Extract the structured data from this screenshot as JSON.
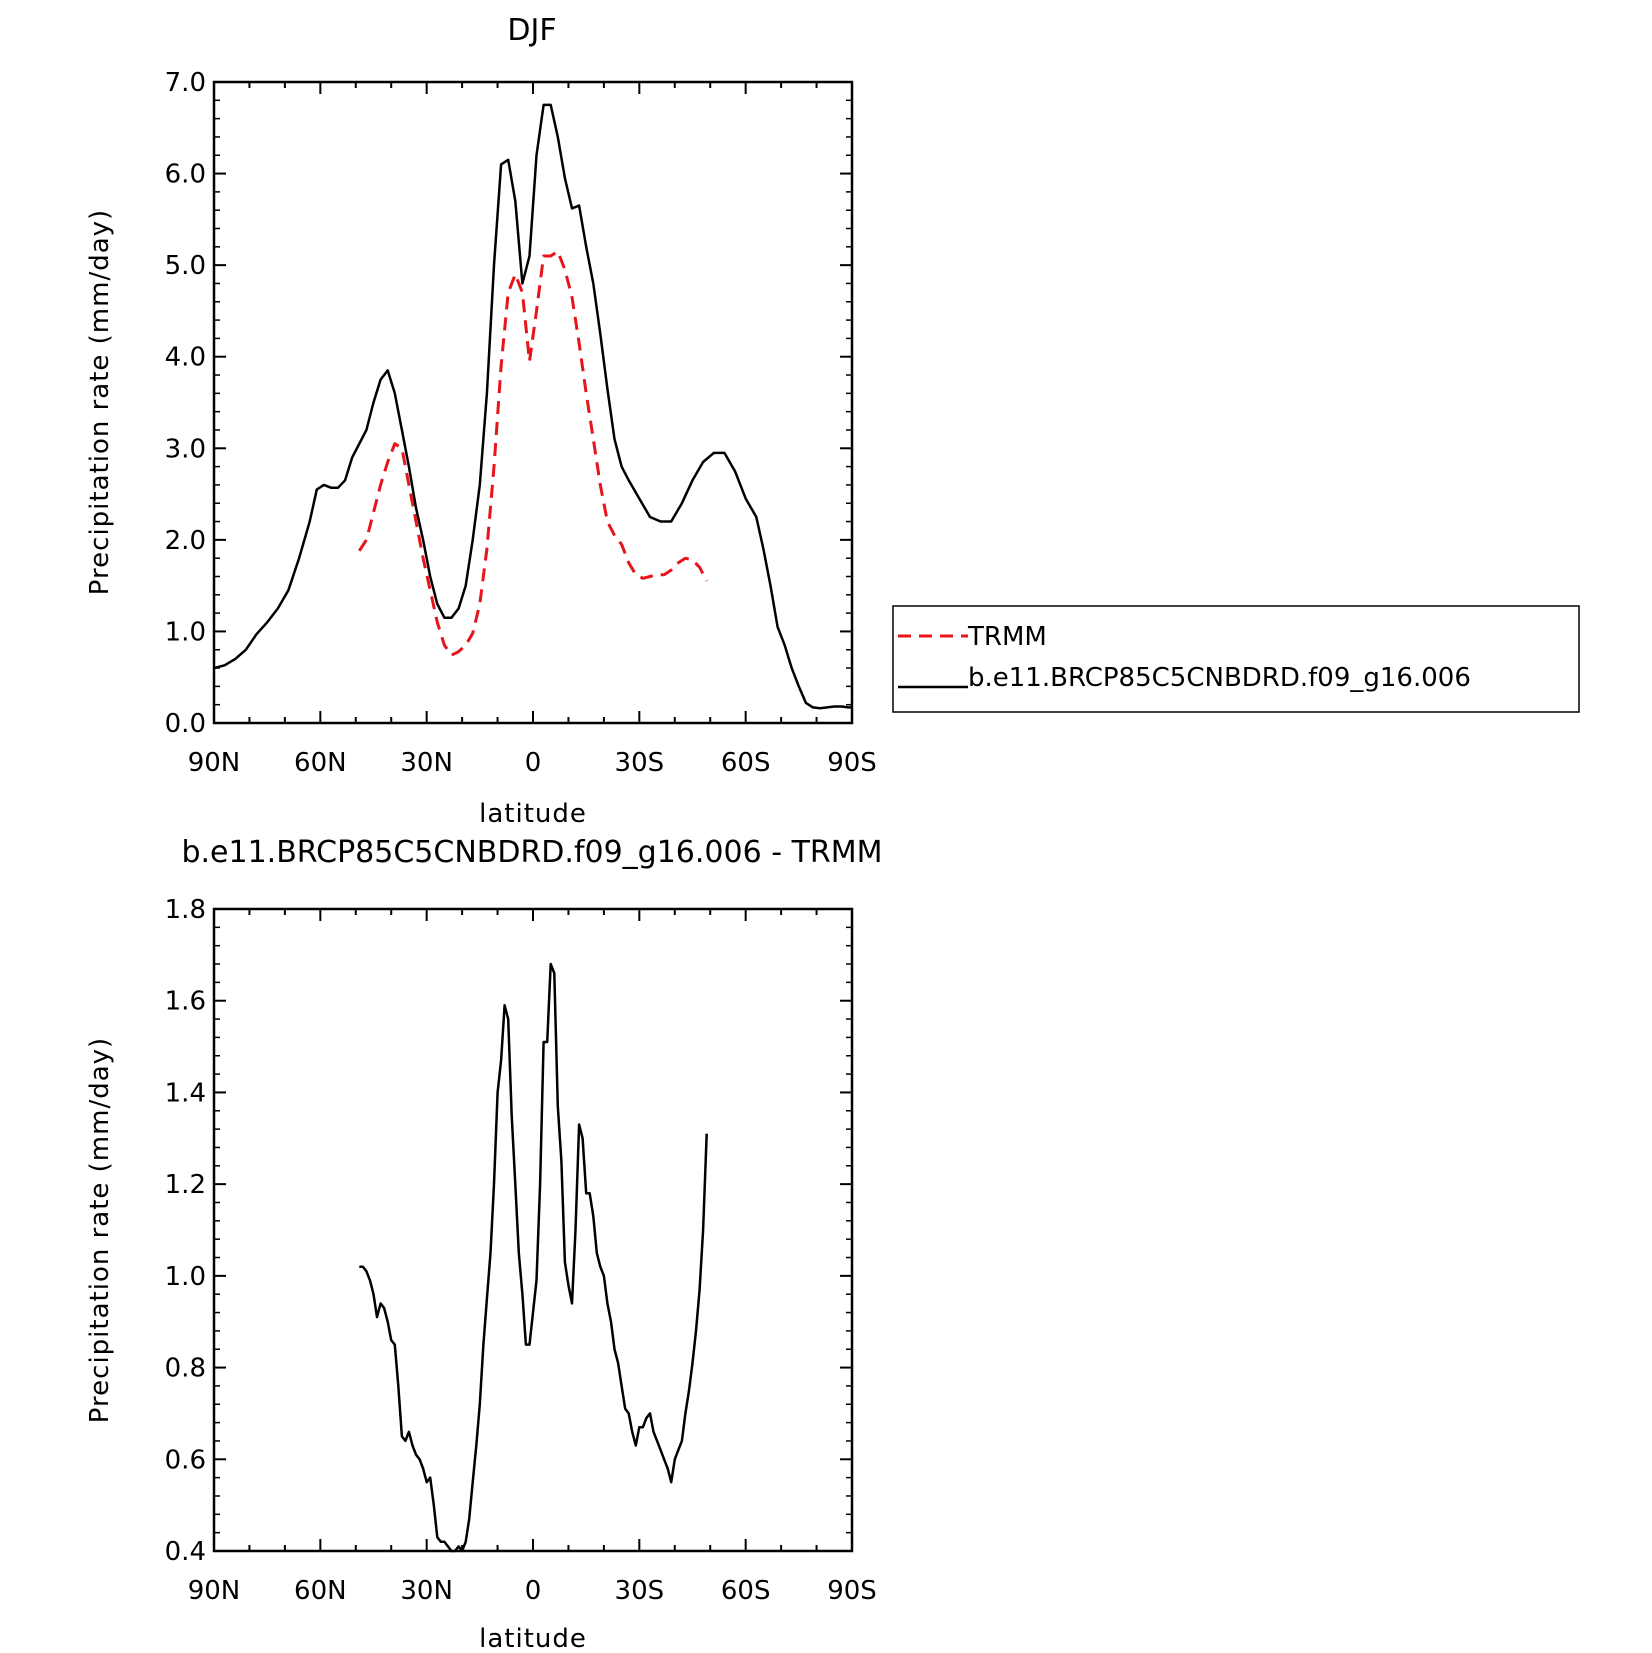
{
  "chart_data": [
    {
      "type": "line",
      "title": "DJF",
      "xlabel": "latitude",
      "ylabel": "Precipitation rate (mm/day)",
      "xlim": [
        90,
        -90
      ],
      "ylim": [
        0,
        7
      ],
      "x_ticks": [
        90,
        60,
        30,
        0,
        -30,
        -60,
        -90
      ],
      "x_tick_labels": [
        "90N",
        "60N",
        "30N",
        "0",
        "30S",
        "60S",
        "90S"
      ],
      "y_ticks": [
        0,
        1,
        2,
        3,
        4,
        5,
        6,
        7
      ],
      "y_tick_labels": [
        "0.0",
        "1.0",
        "2.0",
        "3.0",
        "4.0",
        "5.0",
        "6.0",
        "7.0"
      ],
      "legend_position": "right",
      "series": [
        {
          "name": "TRMM",
          "color": "#e8141b",
          "dash": true,
          "x": [
            49,
            47,
            45,
            43,
            41,
            39,
            37,
            35,
            33,
            31,
            29,
            27,
            25,
            23,
            21,
            19,
            17,
            15,
            13,
            11,
            9,
            7,
            5,
            3,
            1,
            -1,
            -3,
            -5,
            -7,
            -9,
            -11,
            -13,
            -15,
            -17,
            -19,
            -21,
            -23,
            -25,
            -27,
            -29,
            -31,
            -33,
            -35,
            -37,
            -39,
            -41,
            -43,
            -45,
            -47,
            -49
          ],
          "y": [
            1.88,
            2.0,
            2.3,
            2.6,
            2.85,
            3.05,
            3.0,
            2.6,
            2.2,
            1.8,
            1.45,
            1.1,
            0.85,
            0.74,
            0.78,
            0.85,
            0.98,
            1.3,
            1.9,
            2.8,
            3.9,
            4.7,
            4.9,
            4.7,
            3.95,
            4.5,
            5.1,
            5.1,
            5.15,
            4.95,
            4.65,
            4.15,
            3.6,
            3.1,
            2.6,
            2.2,
            2.05,
            1.95,
            1.75,
            1.62,
            1.58,
            1.6,
            1.62,
            1.62,
            1.67,
            1.75,
            1.8,
            1.78,
            1.7,
            1.55
          ]
        },
        {
          "name": "b.e11.BRCP85C5CNBDRD.f09_g16.006",
          "color": "#000000",
          "dash": false,
          "x": [
            90,
            87,
            84,
            81,
            78,
            75,
            72,
            69,
            66,
            63,
            61,
            59,
            57,
            55,
            53,
            51,
            49,
            47,
            45,
            43,
            41,
            39,
            37,
            35,
            33,
            31,
            29,
            27,
            25,
            23,
            21,
            19,
            17,
            15,
            13,
            11,
            9,
            7,
            5,
            3,
            1,
            -1,
            -3,
            -5,
            -7,
            -9,
            -11,
            -13,
            -15,
            -17,
            -19,
            -21,
            -23,
            -25,
            -27,
            -30,
            -33,
            -36,
            -39,
            -42,
            -45,
            -48,
            -51,
            -54,
            -57,
            -60,
            -63,
            -65,
            -67,
            -69,
            -71,
            -73,
            -75,
            -77,
            -79,
            -81,
            -83,
            -85,
            -87,
            -89,
            -90
          ],
          "y": [
            0.6,
            0.63,
            0.7,
            0.8,
            0.97,
            1.1,
            1.25,
            1.45,
            1.8,
            2.2,
            2.55,
            2.6,
            2.57,
            2.57,
            2.65,
            2.9,
            3.05,
            3.2,
            3.5,
            3.75,
            3.85,
            3.6,
            3.2,
            2.8,
            2.35,
            2.0,
            1.6,
            1.3,
            1.15,
            1.15,
            1.25,
            1.5,
            2.0,
            2.6,
            3.6,
            5.0,
            6.1,
            6.15,
            5.7,
            4.8,
            5.1,
            6.2,
            6.75,
            6.75,
            6.4,
            5.95,
            5.62,
            5.65,
            5.2,
            4.8,
            4.25,
            3.65,
            3.1,
            2.8,
            2.65,
            2.45,
            2.25,
            2.2,
            2.2,
            2.4,
            2.65,
            2.85,
            2.95,
            2.95,
            2.75,
            2.45,
            2.25,
            1.9,
            1.5,
            1.05,
            0.85,
            0.6,
            0.4,
            0.22,
            0.17,
            0.16,
            0.17,
            0.18,
            0.18,
            0.17,
            0.17
          ]
        }
      ]
    },
    {
      "type": "line",
      "title": "b.e11.BRCP85C5CNBDRD.f09_g16.006 - TRMM",
      "xlabel": "latitude",
      "ylabel": "Precipitation rate (mm/day)",
      "xlim": [
        90,
        -90
      ],
      "ylim": [
        0.4,
        1.8
      ],
      "x_ticks": [
        90,
        60,
        30,
        0,
        -30,
        -60,
        -90
      ],
      "x_tick_labels": [
        "90N",
        "60N",
        "30N",
        "0",
        "30S",
        "60S",
        "90S"
      ],
      "y_ticks": [
        0.4,
        0.6,
        0.8,
        1.0,
        1.2,
        1.4,
        1.6,
        1.8
      ],
      "y_tick_labels": [
        "0.4",
        "0.6",
        "0.8",
        "1.0",
        "1.2",
        "1.4",
        "1.6",
        "1.8"
      ],
      "series": [
        {
          "color": "#000000",
          "dash": false,
          "x": [
            49,
            48,
            47,
            46,
            45,
            44,
            43,
            42,
            41,
            40,
            39,
            38,
            37,
            36,
            35,
            34,
            33,
            32,
            31,
            30,
            29,
            28,
            27,
            26,
            25,
            24,
            23,
            22,
            21,
            20,
            19,
            18,
            17,
            16,
            15,
            14,
            13,
            12,
            11,
            10,
            9,
            8,
            7,
            6,
            5,
            4,
            3,
            2,
            1,
            0,
            -1,
            -2,
            -3,
            -4,
            -5,
            -6,
            -7,
            -8,
            -9,
            -10,
            -11,
            -12,
            -13,
            -14,
            -15,
            -16,
            -17,
            -18,
            -19,
            -20,
            -21,
            -22,
            -23,
            -24,
            -25,
            -26,
            -27,
            -28,
            -29,
            -30,
            -31,
            -32,
            -33,
            -34,
            -35,
            -36,
            -37,
            -38,
            -39,
            -40,
            -41,
            -42,
            -43,
            -44,
            -45,
            -46,
            -47,
            -48,
            -49
          ],
          "y": [
            1.02,
            1.02,
            1.01,
            0.99,
            0.96,
            0.91,
            0.94,
            0.93,
            0.9,
            0.86,
            0.85,
            0.76,
            0.65,
            0.64,
            0.66,
            0.63,
            0.61,
            0.6,
            0.58,
            0.55,
            0.56,
            0.5,
            0.43,
            0.42,
            0.42,
            0.41,
            0.4,
            0.4,
            0.41,
            0.4,
            0.42,
            0.47,
            0.55,
            0.63,
            0.72,
            0.85,
            0.95,
            1.05,
            1.2,
            1.4,
            1.47,
            1.59,
            1.56,
            1.35,
            1.2,
            1.05,
            0.96,
            0.85,
            0.85,
            0.92,
            0.99,
            1.2,
            1.51,
            1.51,
            1.68,
            1.66,
            1.37,
            1.25,
            1.03,
            0.98,
            0.94,
            1.1,
            1.33,
            1.3,
            1.18,
            1.18,
            1.13,
            1.05,
            1.02,
            1.0,
            0.94,
            0.9,
            0.84,
            0.81,
            0.76,
            0.71,
            0.7,
            0.66,
            0.63,
            0.67,
            0.67,
            0.69,
            0.7,
            0.66,
            0.64,
            0.62,
            0.6,
            0.58,
            0.55,
            0.6,
            0.62,
            0.64,
            0.7,
            0.75,
            0.81,
            0.88,
            0.97,
            1.1,
            1.31
          ]
        }
      ]
    }
  ]
}
